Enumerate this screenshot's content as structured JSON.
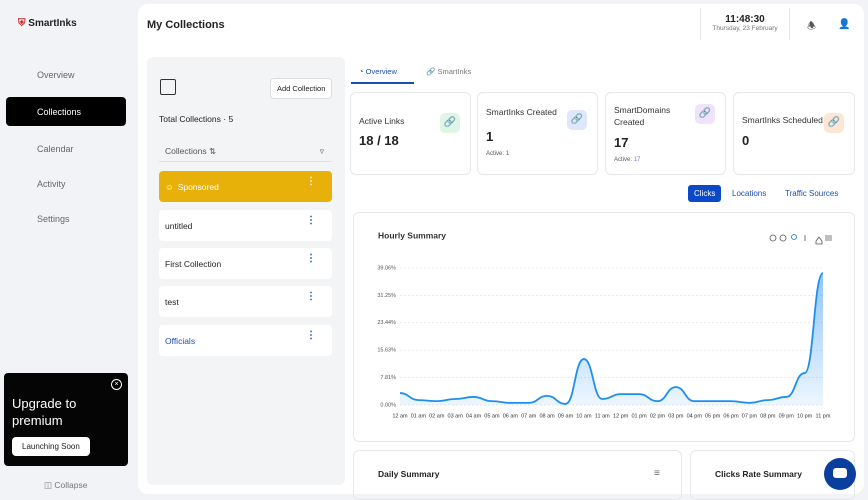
{
  "sidebar": {
    "brand": "SmartInks",
    "nav": [
      "Overview",
      "Collections",
      "Calendar",
      "Activity",
      "Settings"
    ],
    "upgrade": {
      "title": "Upgrade to premium",
      "button": "Launching Soon"
    },
    "collapse": "Collapse"
  },
  "header": {
    "title": "My Collections",
    "time": "11:48:30",
    "date": "Thursday, 23 February"
  },
  "collections": {
    "add_button": "Add Collection",
    "total": "Total Collections · 5",
    "list_header": "Collections",
    "items": [
      "Sponsored",
      "untitled",
      "First Collection",
      "test",
      "Officials"
    ]
  },
  "tabs": [
    "Overview",
    "SmartInks"
  ],
  "stats": [
    {
      "label": "Active Links",
      "value": "18 / 18"
    },
    {
      "label": "SmartInks Created",
      "value": "1",
      "sub_label": "Active:",
      "sub_value": "1"
    },
    {
      "label": "SmartDomains Created",
      "value": "17",
      "sub_label": "Active:",
      "sub_value": "17"
    },
    {
      "label": "SmartInks Scheduled",
      "value": "0"
    }
  ],
  "filters": [
    "Clicks",
    "Locations",
    "Traffic Sources"
  ],
  "chart_data": {
    "type": "area",
    "title": "Hourly Summary",
    "categories": [
      "12 am",
      "01 am",
      "02 am",
      "03 am",
      "04 am",
      "05 am",
      "06 am",
      "07 am",
      "08 am",
      "09 am",
      "10 am",
      "11 am",
      "12 pm",
      "01 pm",
      "02 pm",
      "03 pm",
      "04 pm",
      "05 pm",
      "06 pm",
      "07 pm",
      "08 pm",
      "09 pm",
      "10 pm",
      "11 pm"
    ],
    "values": [
      3.4,
      1.4,
      1.1,
      1.7,
      2.3,
      1.1,
      0.6,
      0.6,
      2.6,
      0.3,
      13.1,
      1.7,
      3.1,
      3.1,
      1.1,
      5.1,
      1.1,
      1.1,
      1.1,
      0.6,
      1.4,
      2.3,
      9.1,
      37.6
    ],
    "color": "#1f8ef1",
    "ylim": [
      0,
      39.06
    ],
    "yticks": [
      {
        "value": 0,
        "label": "0.00%"
      },
      {
        "value": 7.81,
        "label": "7.81%"
      },
      {
        "value": 15.63,
        "label": "15.63%"
      },
      {
        "value": 23.44,
        "label": "23.44%"
      },
      {
        "value": 31.25,
        "label": "31.25%"
      },
      {
        "value": 39.06,
        "label": "39.06%"
      }
    ],
    "grid": true
  },
  "bottom_cards": [
    "Daily Summary",
    "Clicks Rate Summary"
  ]
}
